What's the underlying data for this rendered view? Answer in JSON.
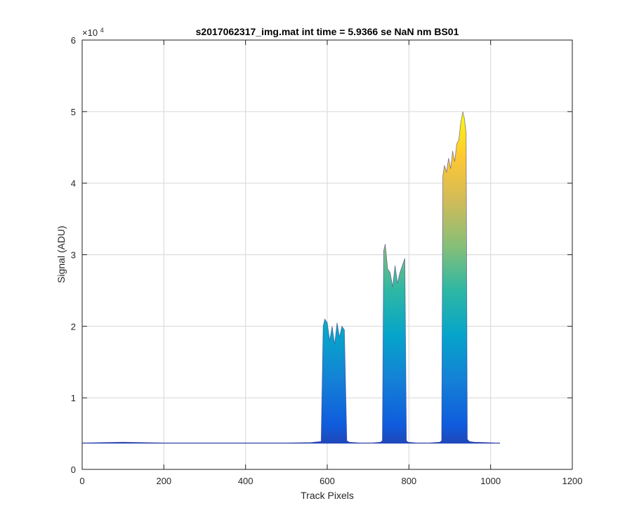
{
  "chart_data": {
    "type": "area",
    "title": "s2017062317_img.mat int time = 5.9366 se  NaN nm BS01",
    "xlabel": "Track Pixels",
    "ylabel": "Signal (ADU)",
    "xlim": [
      0,
      1200
    ],
    "ylim": [
      0,
      60000
    ],
    "xticks": [
      0,
      200,
      400,
      600,
      800,
      1000,
      1200
    ],
    "xtick_labels": [
      "0",
      "200",
      "400",
      "600",
      "800",
      "1000",
      "1200"
    ],
    "yticks": [
      0,
      10000,
      20000,
      30000,
      40000,
      50000,
      60000
    ],
    "ytick_labels": [
      "0",
      "1",
      "2",
      "3",
      "4",
      "5",
      "6"
    ],
    "y_exponent_base": "×10",
    "y_exponent_power": "4",
    "grid": true,
    "colormap": [
      "#352a87",
      "#0f5cdd",
      "#1481d6",
      "#06a4ca",
      "#2eb7a4",
      "#87bf77",
      "#d1bb59",
      "#fec832",
      "#f9fb0e"
    ],
    "series": [
      {
        "x": [
          0,
          50,
          100,
          150,
          200,
          300,
          400,
          500,
          560,
          585,
          590,
          594,
          600,
          606,
          612,
          618,
          624,
          630,
          636,
          642,
          648,
          654,
          680,
          710,
          730,
          735,
          738,
          742,
          748,
          754,
          760,
          766,
          772,
          778,
          784,
          790,
          794,
          798,
          820,
          850,
          875,
          880,
          883,
          887,
          892,
          897,
          902,
          907,
          912,
          917,
          922,
          927,
          932,
          936,
          940,
          943,
          948,
          960,
          990,
          1010,
          1023
        ],
        "y": [
          3700,
          3750,
          3800,
          3750,
          3700,
          3700,
          3700,
          3700,
          3750,
          3900,
          20000,
          21000,
          20500,
          18000,
          20000,
          17500,
          20500,
          18500,
          20000,
          19500,
          4000,
          3800,
          3700,
          3700,
          3800,
          4000,
          30500,
          31500,
          28000,
          27500,
          25500,
          28500,
          26000,
          27500,
          28500,
          29500,
          4000,
          3800,
          3700,
          3700,
          3800,
          4000,
          41000,
          42500,
          41500,
          43500,
          42000,
          44500,
          43000,
          45500,
          46000,
          48500,
          50000,
          49000,
          47000,
          4200,
          3900,
          3800,
          3750,
          3700,
          3700
        ]
      }
    ]
  }
}
